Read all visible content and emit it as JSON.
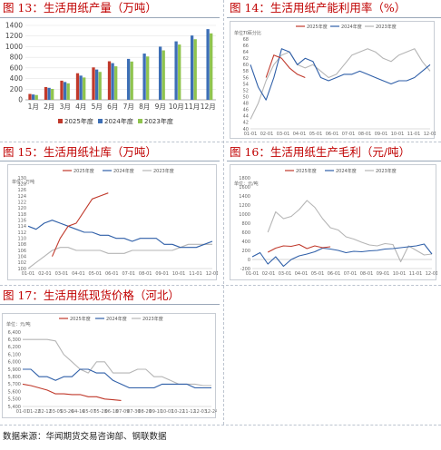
{
  "source": "数据来源：华闻期货交易咨询部、钢联数据",
  "charts": {
    "c13": {
      "title": "图 13：生活用纸产量（万吨）",
      "chart_data": {
        "type": "bar",
        "categories": [
          "1月",
          "2月",
          "3月",
          "4月",
          "5月",
          "6月",
          "7月",
          "8月",
          "9月",
          "10月",
          "11月",
          "12月"
        ],
        "series": [
          {
            "name": "2025年度",
            "color": "#c0392b",
            "values": [
              110,
              240,
              360,
              500,
              610,
              725,
              null,
              null,
              null,
              null,
              null,
              null
            ]
          },
          {
            "name": "2024年度",
            "color": "#3d6fb6",
            "values": [
              100,
              225,
              335,
              455,
              570,
              690,
              770,
              870,
              1000,
              1100,
              1210,
              1330
            ]
          },
          {
            "name": "2023年度",
            "color": "#8fc44e",
            "values": [
              90,
              205,
              310,
              420,
              525,
              630,
              720,
              815,
              930,
              1040,
              1140,
              1250
            ]
          }
        ],
        "yticks": [
          "0",
          "200",
          "400",
          "600",
          "800",
          "1000",
          "1200",
          "1400"
        ],
        "ylim": [
          0,
          1400
        ],
        "legend": "bottom"
      }
    },
    "c14": {
      "title": "图 14：生活用纸产能利用率（%）",
      "chart_data": {
        "type": "line",
        "unit": "单位：百分比",
        "yticks": [
          "70",
          "68",
          "66",
          "64",
          "62",
          "60",
          "58",
          "56",
          "54",
          "52",
          "50",
          "48",
          "46",
          "44",
          "42",
          "40"
        ],
        "ylim": [
          40,
          70
        ],
        "xticks": [
          "01-01",
          "02-01",
          "03-01",
          "04-01",
          "05-01",
          "06-01",
          "07-01",
          "08-01",
          "09-01",
          "10-01",
          "11-01",
          "12-01"
        ],
        "series": [
          {
            "name": "2025年度",
            "color": "#c0392b",
            "values": [
              null,
              null,
              56,
              63,
              62,
              59,
              57,
              56,
              null,
              null,
              null,
              null,
              null,
              null,
              null,
              null,
              null,
              null,
              null,
              null,
              null,
              null,
              null,
              null
            ]
          },
          {
            "name": "2024年度",
            "color": "#2f5fa8",
            "values": [
              60,
              53,
              49,
              56,
              65,
              64,
              60,
              62,
              61,
              56,
              55,
              56,
              57,
              57,
              58,
              57,
              56,
              55,
              54,
              55,
              55,
              56,
              58,
              60
            ]
          },
          {
            "name": "2023年度",
            "color": "#b5b5b5",
            "values": [
              43,
              48,
              55,
              60,
              63,
              64,
              60,
              59,
              60,
              58,
              56,
              57,
              60,
              63,
              64,
              65,
              64,
              62,
              61,
              63,
              64,
              65,
              61,
              58
            ]
          }
        ],
        "legend": "top"
      }
    },
    "c15": {
      "title": "图 15：生活用纸社库（万吨）",
      "chart_data": {
        "type": "line",
        "unit": "单位：万吨",
        "yticks": [
          "130",
          "128",
          "126",
          "124",
          "122",
          "120",
          "118",
          "116",
          "114",
          "112",
          "110",
          "108",
          "106",
          "104",
          "102",
          "100"
        ],
        "ylim": [
          100,
          130
        ],
        "xticks": [
          "01-01",
          "02-01",
          "03-01",
          "04-01",
          "05-01",
          "06-01",
          "07-01",
          "08-01",
          "09-01",
          "10-01",
          "11-01",
          "12-01"
        ],
        "series": [
          {
            "name": "2025年度",
            "color": "#c0392b",
            "values": [
              null,
              null,
              null,
              104,
              110,
              114,
              115,
              119,
              123,
              124,
              125,
              null,
              null,
              null,
              null,
              null,
              null,
              null,
              null,
              null,
              null,
              null,
              null,
              null
            ]
          },
          {
            "name": "2024年度",
            "color": "#2f5fa8",
            "values": [
              114,
              113,
              115,
              116,
              115,
              114,
              113,
              112,
              112,
              111,
              111,
              110,
              110,
              109,
              110,
              110,
              110,
              108,
              108,
              107,
              107,
              107,
              108,
              109
            ]
          },
          {
            "name": "2023年度",
            "color": "#b5b5b5",
            "values": [
              100,
              102,
              104,
              106,
              107,
              107,
              106,
              106,
              106,
              106,
              105,
              105,
              105,
              106,
              106,
              106,
              106,
              106,
              106,
              107,
              108,
              108,
              108,
              108
            ]
          }
        ],
        "legend": "top"
      }
    },
    "c16": {
      "title": "图 16：生活用纸生产毛利（元/吨）",
      "chart_data": {
        "type": "line",
        "unit": "单位：元/吨",
        "yticks": [
          "1800",
          "1600",
          "1400",
          "1200",
          "1000",
          "800",
          "600",
          "400",
          "200",
          "0",
          "-200"
        ],
        "ylim": [
          -200,
          1800
        ],
        "xticks": [
          "01-01",
          "02-01",
          "03-01",
          "04-01",
          "05-01",
          "06-01",
          "07-01",
          "08-01",
          "09-01",
          "10-01",
          "11-01",
          "12-01"
        ],
        "series": [
          {
            "name": "2025年度",
            "color": "#c0392b",
            "values": [
              null,
              null,
              160,
              250,
              300,
              290,
              330,
              240,
              300,
              260,
              280,
              null,
              null,
              null,
              null,
              null,
              null,
              null,
              null,
              null,
              null,
              null,
              null,
              null
            ]
          },
          {
            "name": "2024年度",
            "color": "#2f5fa8",
            "values": [
              60,
              150,
              -100,
              60,
              -150,
              0,
              80,
              120,
              170,
              250,
              230,
              200,
              150,
              180,
              170,
              190,
              200,
              230,
              240,
              260,
              280,
              300,
              340,
              120
            ]
          },
          {
            "name": "2023年度",
            "color": "#b5b5b5",
            "values": [
              null,
              null,
              600,
              1050,
              900,
              950,
              1100,
              1300,
              1150,
              900,
              700,
              650,
              500,
              450,
              380,
              320,
              300,
              350,
              330,
              -50,
              300,
              200,
              100,
              120
            ]
          }
        ],
        "legend": "top"
      }
    },
    "c17": {
      "title": "图 17：生活用纸现货价格（河北）",
      "chart_data": {
        "type": "line",
        "unit": "单位：元/吨",
        "yticks": [
          "6,400",
          "6,300",
          "6,200",
          "6,100",
          "6,000",
          "5,900",
          "5,800",
          "5,700",
          "5,600",
          "5,500",
          "5,400"
        ],
        "ylim": [
          5400,
          6400
        ],
        "xticks": [
          "01-01",
          "01-22",
          "02-12",
          "03-05",
          "03-26",
          "04-16",
          "05-07",
          "05-28",
          "06-18",
          "07-09",
          "07-30",
          "08-20",
          "09-10",
          "10-01",
          "10-22",
          "11-12",
          "12-03",
          "12-24"
        ],
        "series": [
          {
            "name": "2025年度",
            "color": "#c0392b",
            "values": [
              5700,
              5680,
              5650,
              5620,
              5570,
              5570,
              5560,
              5560,
              5530,
              5530,
              5500,
              5490,
              5480,
              null,
              null,
              null,
              null,
              null,
              null,
              null,
              null,
              null,
              null,
              null
            ]
          },
          {
            "name": "2024年度",
            "color": "#2f5fa8",
            "values": [
              5900,
              5900,
              5800,
              5800,
              5750,
              5800,
              5800,
              5900,
              5900,
              5850,
              5850,
              5750,
              5700,
              5650,
              5650,
              5650,
              5650,
              5700,
              5700,
              5700,
              5700,
              5650,
              5650,
              5650
            ]
          },
          {
            "name": "2023年度",
            "color": "#b5b5b5",
            "values": [
              6300,
              6300,
              6300,
              6300,
              6280,
              6100,
              6000,
              5900,
              5850,
              6000,
              6000,
              5850,
              5850,
              5850,
              5900,
              5900,
              5800,
              5800,
              5750,
              5700,
              5700,
              5700,
              5680,
              5680
            ]
          }
        ],
        "legend": "top"
      }
    }
  }
}
